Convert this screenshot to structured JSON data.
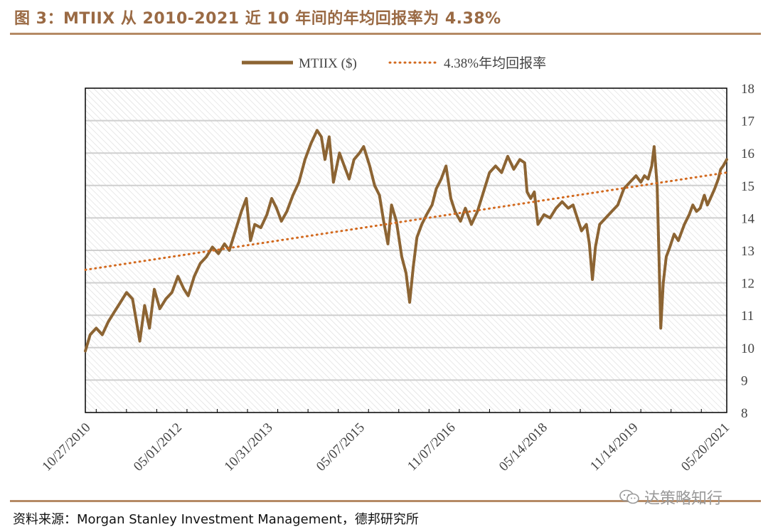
{
  "header": {
    "title": "图 3：MTIIX 从 2010-2021 近 10 年间的年均回报率为 4.38%"
  },
  "footer": {
    "source": "资料来源：Morgan Stanley Investment Management，德邦研究所",
    "watermark": "达策略知行",
    "watermark_icon": "wechat-icon"
  },
  "colors": {
    "series": "#8c6433",
    "trend": "#d2691e",
    "accent": "#b58a65"
  },
  "chart_data": {
    "type": "line",
    "title": "",
    "legend_position": "top-center",
    "xlabel": "",
    "ylabel": "",
    "ylim": [
      8,
      18
    ],
    "yticks": [
      "8",
      "9",
      "10",
      "11",
      "12",
      "13",
      "14",
      "15",
      "16",
      "17",
      "18"
    ],
    "grid": true,
    "x_range_years": [
      2010.82,
      2021.42
    ],
    "xticks": [
      {
        "label": "10/27/2010",
        "year": 2010.82
      },
      {
        "label": "05/01/2012",
        "year": 2012.33
      },
      {
        "label": "10/31/2013",
        "year": 2013.83
      },
      {
        "label": "05/07/2015",
        "year": 2015.35
      },
      {
        "label": "11/07/2016",
        "year": 2016.85
      },
      {
        "label": "05/14/2018",
        "year": 2018.37
      },
      {
        "label": "11/14/2019",
        "year": 2019.87
      },
      {
        "label": "05/20/2021",
        "year": 2021.38
      }
    ],
    "series": [
      {
        "name": "MTIIX ($)",
        "style": "solid",
        "points": [
          [
            2010.82,
            9.9
          ],
          [
            2010.9,
            10.4
          ],
          [
            2011.0,
            10.6
          ],
          [
            2011.1,
            10.4
          ],
          [
            2011.2,
            10.8
          ],
          [
            2011.3,
            11.1
          ],
          [
            2011.4,
            11.4
          ],
          [
            2011.5,
            11.7
          ],
          [
            2011.6,
            11.5
          ],
          [
            2011.72,
            10.2
          ],
          [
            2011.8,
            11.3
          ],
          [
            2011.88,
            10.6
          ],
          [
            2011.96,
            11.8
          ],
          [
            2012.05,
            11.2
          ],
          [
            2012.15,
            11.5
          ],
          [
            2012.25,
            11.7
          ],
          [
            2012.35,
            12.2
          ],
          [
            2012.45,
            11.8
          ],
          [
            2012.52,
            11.6
          ],
          [
            2012.62,
            12.2
          ],
          [
            2012.72,
            12.6
          ],
          [
            2012.82,
            12.8
          ],
          [
            2012.92,
            13.1
          ],
          [
            2013.02,
            12.9
          ],
          [
            2013.12,
            13.2
          ],
          [
            2013.2,
            13.0
          ],
          [
            2013.3,
            13.6
          ],
          [
            2013.4,
            14.2
          ],
          [
            2013.48,
            14.6
          ],
          [
            2013.55,
            13.3
          ],
          [
            2013.62,
            13.8
          ],
          [
            2013.72,
            13.7
          ],
          [
            2013.82,
            14.1
          ],
          [
            2013.9,
            14.6
          ],
          [
            2013.98,
            14.3
          ],
          [
            2014.06,
            13.9
          ],
          [
            2014.15,
            14.2
          ],
          [
            2014.25,
            14.7
          ],
          [
            2014.35,
            15.1
          ],
          [
            2014.45,
            15.8
          ],
          [
            2014.55,
            16.3
          ],
          [
            2014.65,
            16.7
          ],
          [
            2014.72,
            16.5
          ],
          [
            2014.78,
            15.8
          ],
          [
            2014.85,
            16.5
          ],
          [
            2014.92,
            15.1
          ],
          [
            2015.02,
            16.0
          ],
          [
            2015.1,
            15.6
          ],
          [
            2015.18,
            15.2
          ],
          [
            2015.26,
            15.8
          ],
          [
            2015.35,
            16.0
          ],
          [
            2015.42,
            16.2
          ],
          [
            2015.52,
            15.6
          ],
          [
            2015.6,
            15.0
          ],
          [
            2015.68,
            14.7
          ],
          [
            2015.75,
            13.9
          ],
          [
            2015.82,
            13.2
          ],
          [
            2015.88,
            14.4
          ],
          [
            2015.96,
            13.9
          ],
          [
            2016.05,
            12.8
          ],
          [
            2016.12,
            12.3
          ],
          [
            2016.18,
            11.4
          ],
          [
            2016.24,
            12.5
          ],
          [
            2016.3,
            13.4
          ],
          [
            2016.38,
            13.8
          ],
          [
            2016.46,
            14.1
          ],
          [
            2016.55,
            14.4
          ],
          [
            2016.62,
            14.9
          ],
          [
            2016.7,
            15.2
          ],
          [
            2016.78,
            15.6
          ],
          [
            2016.86,
            14.6
          ],
          [
            2016.93,
            14.2
          ],
          [
            2017.02,
            13.9
          ],
          [
            2017.1,
            14.3
          ],
          [
            2017.2,
            13.8
          ],
          [
            2017.3,
            14.2
          ],
          [
            2017.4,
            14.8
          ],
          [
            2017.5,
            15.4
          ],
          [
            2017.6,
            15.6
          ],
          [
            2017.7,
            15.4
          ],
          [
            2017.8,
            15.9
          ],
          [
            2017.9,
            15.5
          ],
          [
            2018.0,
            15.8
          ],
          [
            2018.08,
            15.7
          ],
          [
            2018.12,
            14.8
          ],
          [
            2018.18,
            14.6
          ],
          [
            2018.24,
            14.8
          ],
          [
            2018.3,
            13.8
          ],
          [
            2018.4,
            14.1
          ],
          [
            2018.5,
            14.0
          ],
          [
            2018.6,
            14.3
          ],
          [
            2018.7,
            14.5
          ],
          [
            2018.8,
            14.3
          ],
          [
            2018.88,
            14.4
          ],
          [
            2018.95,
            14.0
          ],
          [
            2019.02,
            13.6
          ],
          [
            2019.1,
            13.8
          ],
          [
            2019.15,
            13.2
          ],
          [
            2019.2,
            12.1
          ],
          [
            2019.25,
            13.1
          ],
          [
            2019.32,
            13.8
          ],
          [
            2019.42,
            14.0
          ],
          [
            2019.52,
            14.2
          ],
          [
            2019.62,
            14.4
          ],
          [
            2019.72,
            14.9
          ],
          [
            2019.82,
            15.1
          ],
          [
            2019.92,
            15.3
          ],
          [
            2020.0,
            15.1
          ],
          [
            2020.06,
            15.3
          ],
          [
            2020.12,
            15.2
          ],
          [
            2020.18,
            15.6
          ],
          [
            2020.22,
            16.2
          ],
          [
            2020.27,
            15.0
          ],
          [
            2020.3,
            12.8
          ],
          [
            2020.33,
            10.6
          ],
          [
            2020.37,
            12.0
          ],
          [
            2020.42,
            12.8
          ],
          [
            2020.48,
            13.1
          ],
          [
            2020.55,
            13.5
          ],
          [
            2020.62,
            13.3
          ],
          [
            2020.72,
            13.8
          ],
          [
            2020.8,
            14.1
          ],
          [
            2020.86,
            14.4
          ],
          [
            2020.92,
            14.2
          ],
          [
            2020.98,
            14.3
          ],
          [
            2021.05,
            14.7
          ],
          [
            2021.1,
            14.4
          ],
          [
            2021.15,
            14.6
          ],
          [
            2021.22,
            14.9
          ],
          [
            2021.28,
            15.2
          ],
          [
            2021.32,
            15.5
          ],
          [
            2021.36,
            15.6
          ],
          [
            2021.42,
            15.8
          ]
        ]
      },
      {
        "name": "4.38%年均回报率",
        "style": "dotted",
        "points": [
          [
            2010.82,
            12.4
          ],
          [
            2021.42,
            15.4
          ]
        ]
      }
    ]
  }
}
